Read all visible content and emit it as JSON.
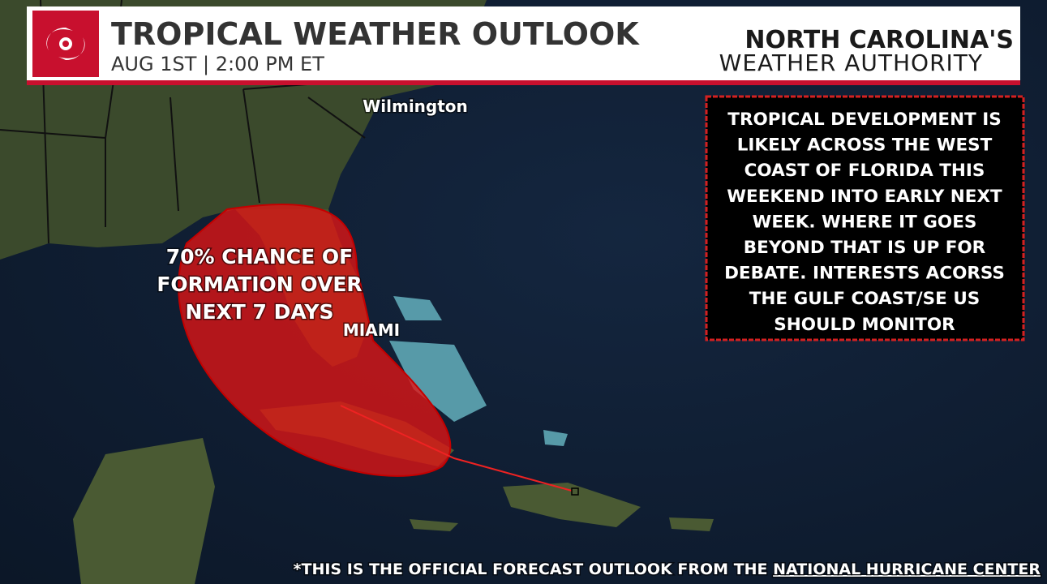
{
  "header": {
    "title": "TROPICAL WEATHER OUTLOOK",
    "subtitle": "AUG 1ST | 2:00 PM ET"
  },
  "brand": {
    "line1": "NORTH CAROLINA'S",
    "line2": "WEATHER AUTHORITY"
  },
  "map": {
    "labels": {
      "city1": "Wilmington",
      "city2": "MIAMI"
    },
    "outlook_label": [
      "70% CHANCE OF",
      "FORMATION OVER",
      "NEXT 7 DAYS"
    ]
  },
  "info_box": [
    "TROPICAL DEVELOPMENT IS",
    "LIKELY ACROSS THE WEST",
    "COAST OF FLORIDA THIS",
    "WEEKEND INTO EARLY NEXT",
    "WEEK. WHERE IT GOES",
    "BEYOND THAT IS UP FOR",
    "DEBATE. INTERESTS ACORSS",
    "THE GULF COAST/SE US",
    "SHOULD MONITOR"
  ],
  "footer": {
    "text": "*THIS IS THE OFFICIAL FORECAST OUTLOOK FROM THE ",
    "link": "NATIONAL HURRICANE CENTER"
  }
}
